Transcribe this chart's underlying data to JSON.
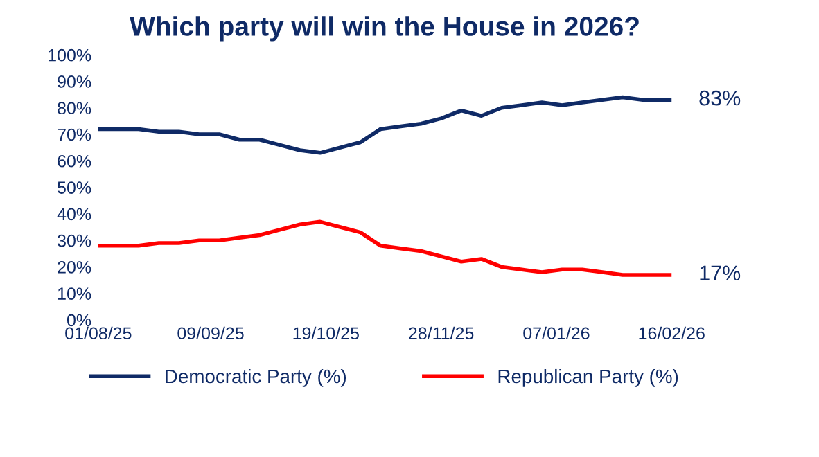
{
  "chart_data": {
    "type": "line",
    "title": "Which party will win the House in 2026?",
    "x": [
      "2025-08-01",
      "2025-08-15",
      "2025-08-22",
      "2025-08-29",
      "2025-09-05",
      "2025-09-12",
      "2025-09-19",
      "2025-09-26",
      "2025-10-03",
      "2025-10-10",
      "2025-10-17",
      "2025-10-24",
      "2025-10-31",
      "2025-11-07",
      "2025-11-14",
      "2025-11-21",
      "2025-11-28",
      "2025-12-05",
      "2025-12-12",
      "2025-12-19",
      "2025-12-26",
      "2026-01-02",
      "2026-01-09",
      "2026-01-16",
      "2026-01-23",
      "2026-01-30",
      "2026-02-06",
      "2026-02-16"
    ],
    "series": [
      {
        "name": "Democratic Party (%)",
        "color": "#0f2a66",
        "values": [
          72,
          72,
          71,
          71,
          70,
          70,
          68,
          68,
          66,
          64,
          63,
          65,
          67,
          72,
          73,
          74,
          76,
          79,
          77,
          80,
          81,
          82,
          81,
          82,
          83,
          84,
          83,
          83
        ]
      },
      {
        "name": "Republican Party (%)",
        "color": "#ff0000",
        "values": [
          28,
          28,
          29,
          29,
          30,
          30,
          31,
          32,
          34,
          36,
          37,
          35,
          33,
          28,
          27,
          26,
          24,
          22,
          23,
          20,
          19,
          18,
          19,
          19,
          18,
          17,
          17,
          17
        ]
      }
    ],
    "xlim": [
      "2025-08-01",
      "2026-02-16"
    ],
    "xticks": [
      {
        "value": "2025-08-01",
        "label": "01/08/25"
      },
      {
        "value": "2025-09-09",
        "label": "09/09/25"
      },
      {
        "value": "2025-10-19",
        "label": "19/10/25"
      },
      {
        "value": "2025-11-28",
        "label": "28/11/25"
      },
      {
        "value": "2026-01-07",
        "label": "07/01/26"
      },
      {
        "value": "2026-02-16",
        "label": "16/02/26"
      }
    ],
    "ylim": [
      0,
      100
    ],
    "yticks": [
      {
        "value": 0,
        "label": "0%"
      },
      {
        "value": 10,
        "label": "10%"
      },
      {
        "value": 20,
        "label": "20%"
      },
      {
        "value": 30,
        "label": "30%"
      },
      {
        "value": 40,
        "label": "40%"
      },
      {
        "value": 50,
        "label": "50%"
      },
      {
        "value": 60,
        "label": "60%"
      },
      {
        "value": 70,
        "label": "70%"
      },
      {
        "value": 80,
        "label": "80%"
      },
      {
        "value": 90,
        "label": "90%"
      },
      {
        "value": 100,
        "label": "100%"
      }
    ],
    "annotations": [
      {
        "text": "83%",
        "x": "2026-02-16",
        "y": 83
      },
      {
        "text": "17%",
        "x": "2026-02-16",
        "y": 17
      }
    ],
    "grid": false,
    "legend": "bottom",
    "marker": "none",
    "line_style": "solid"
  }
}
